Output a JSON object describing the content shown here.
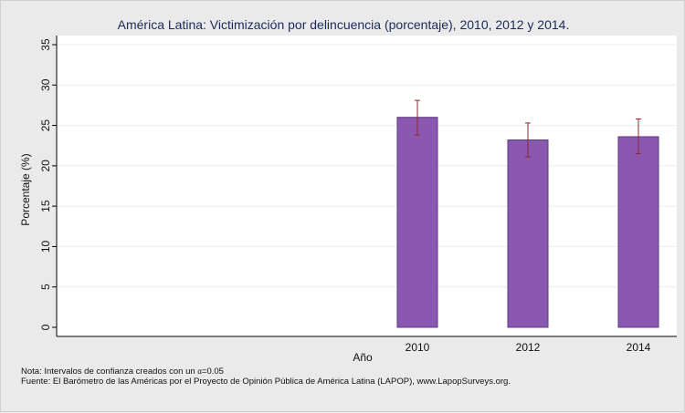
{
  "chart_data": {
    "type": "bar",
    "title": "América Latina: Victimización por delincuencia (porcentaje), 2010, 2012 y 2014.",
    "xlabel": "Año",
    "ylabel": "Porcentaje (%)",
    "categories": [
      "2010",
      "2012",
      "2014"
    ],
    "values": [
      26.0,
      23.2,
      23.6
    ],
    "ci_low": [
      23.8,
      21.1,
      21.5
    ],
    "ci_high": [
      28.1,
      25.3,
      25.8
    ],
    "ylim": [
      0,
      35
    ],
    "yticks": [
      0,
      5,
      10,
      15,
      20,
      25,
      30,
      35
    ],
    "grid": true,
    "bar_color": "#8b58b1",
    "bar_edge_color": "#5e3a82",
    "errorbar_color": "#8b2a2a",
    "plot_background": "#ffffff",
    "page_background": "#eaeaea"
  },
  "notes": {
    "line1_prefix": "Nota: Intervalos de confianza creados con un ",
    "line1_symbol": "α",
    "line1_suffix": "=0.05",
    "line2": "Fuente: El Barómetro de las Américas por el Proyecto de Opinión Pública de América Latina (LAPOP), www.LapopSurveys.org."
  }
}
